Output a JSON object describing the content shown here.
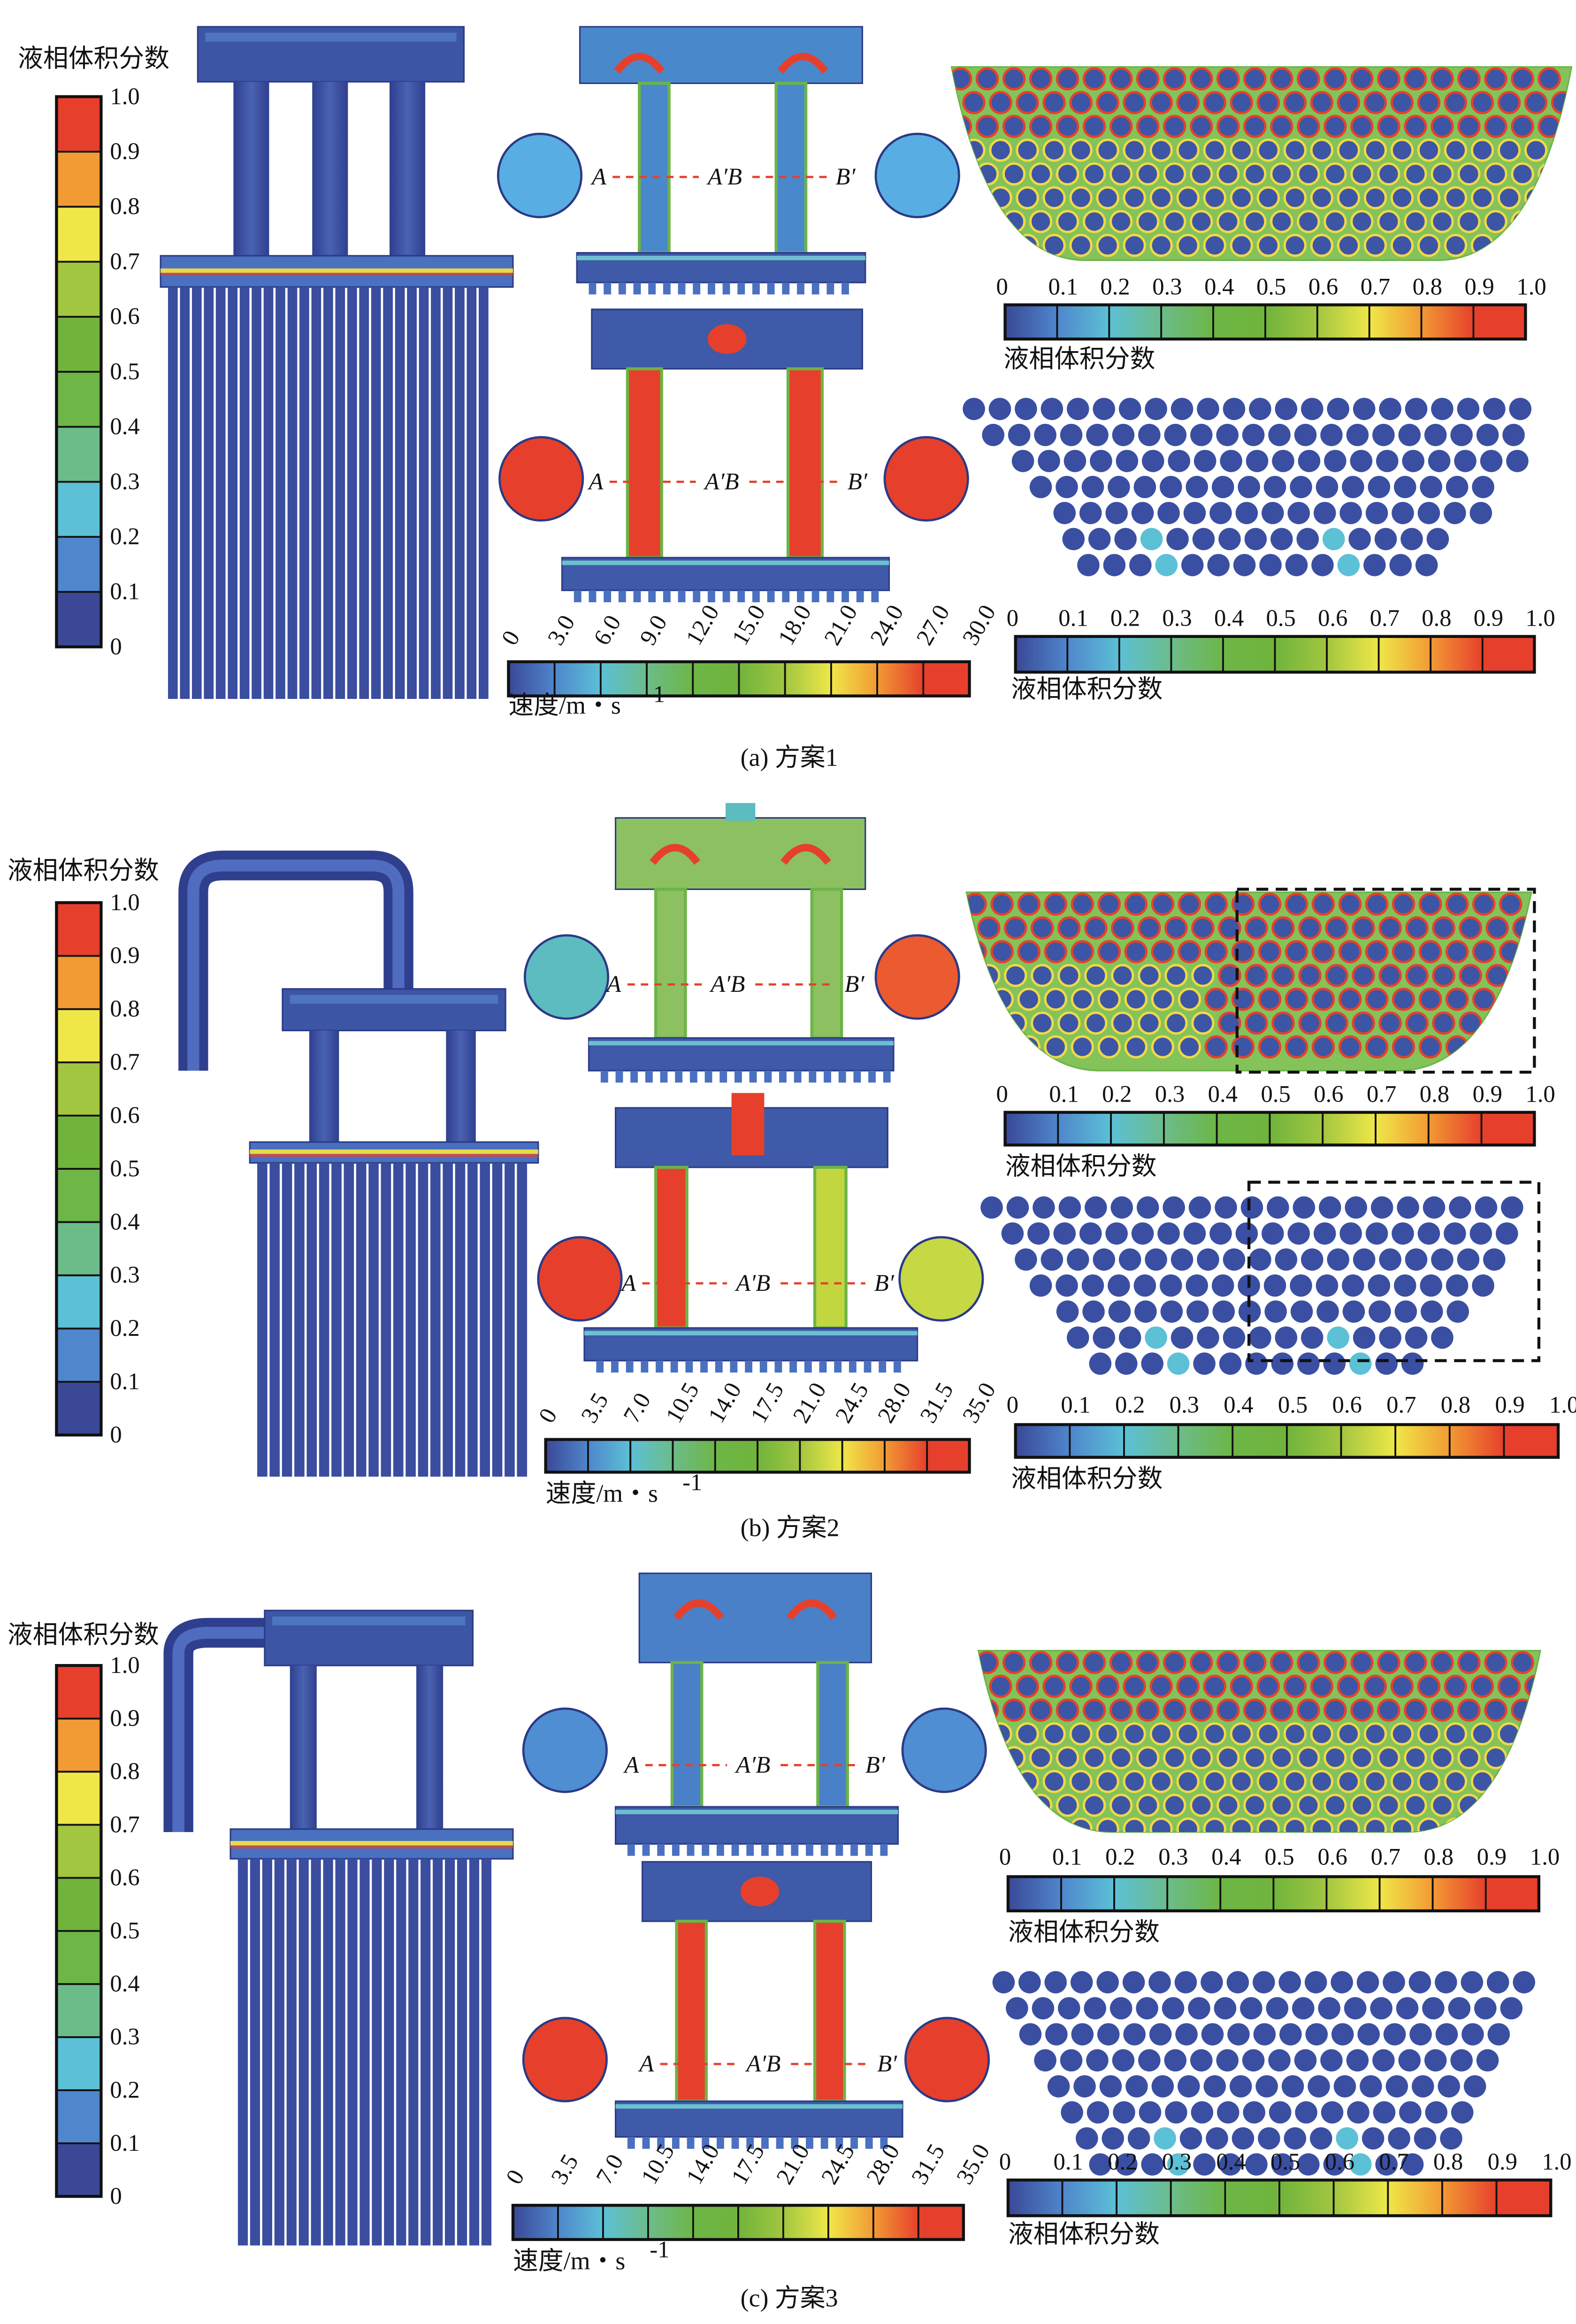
{
  "liquid_label": "液相体积分数",
  "speed_label": "速度/m・s",
  "speed_unit_exp": "-1",
  "section_labels": {
    "a": "A",
    "ab": "A′B",
    "b": "B′"
  },
  "liquid_ticks_vertical": [
    "1.0",
    "0.9",
    "0.8",
    "0.7",
    "0.6",
    "0.5",
    "0.4",
    "0.3",
    "0.2",
    "0.1",
    "0"
  ],
  "liquid_ticks_horizontal": [
    "0",
    "0.1",
    "0.2",
    "0.3",
    "0.4",
    "0.5",
    "0.6",
    "0.7",
    "0.8",
    "0.9",
    "1.0"
  ],
  "colorbar_colors": [
    "#3a4896",
    "#4f86cc",
    "#5cc0d6",
    "#6cbc8a",
    "#6db647",
    "#70b43c",
    "#a2c640",
    "#efe748",
    "#f29a34",
    "#e6402c"
  ],
  "panels": [
    {
      "caption": "(a) 方案1",
      "speed_ticks": [
        "0",
        "3.0",
        "6.0",
        "9.0",
        "12.0",
        "15.0",
        "18.0",
        "21.0",
        "24.0",
        "27.0",
        "30.0"
      ],
      "speed_max": 30.0,
      "upper_section_colors": {
        "left_circle": "#58aee2",
        "right_circle": "#58aee2",
        "body": "#4a88cc"
      },
      "lower_section_colors": {
        "left_circle": "#e6402c",
        "right_circle": "#e6402c",
        "left_pipe": "#e6402c",
        "right_pipe": "#e6402c"
      },
      "highlight_box": false
    },
    {
      "caption": "(b) 方案2",
      "speed_ticks": [
        "0",
        "3.5",
        "7.0",
        "10.5",
        "14.0",
        "17.5",
        "21.0",
        "24.5",
        "28.0",
        "31.5",
        "35.0"
      ],
      "speed_max": 35.0,
      "upper_section_colors": {
        "left_circle": "#5cbcc0",
        "right_circle": "#ec5a30",
        "body": "#8cc060"
      },
      "lower_section_colors": {
        "left_circle": "#e6402c",
        "right_circle": "#c6d844",
        "left_pipe": "#e6402c",
        "right_pipe": "#c2d640"
      },
      "highlight_box": true
    },
    {
      "caption": "(c) 方案3",
      "speed_ticks": [
        "0",
        "3.5",
        "7.0",
        "10.5",
        "14.0",
        "17.5",
        "21.0",
        "24.5",
        "28.0",
        "31.5",
        "35.0"
      ],
      "speed_max": 35.0,
      "upper_section_colors": {
        "left_circle": "#4f8ed2",
        "right_circle": "#4f8ed2",
        "body": "#4a80c8"
      },
      "lower_section_colors": {
        "left_circle": "#e6402c",
        "right_circle": "#e6402c",
        "left_pipe": "#e6402c",
        "right_pipe": "#e6402c"
      },
      "highlight_box": false
    }
  ]
}
